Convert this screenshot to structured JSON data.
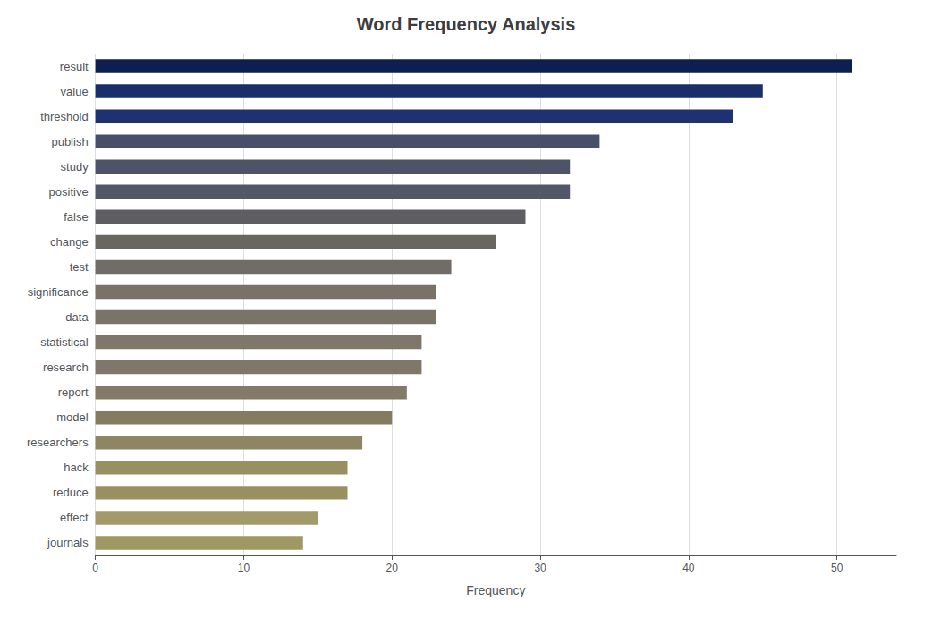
{
  "chart_data": {
    "type": "bar",
    "orientation": "horizontal",
    "title": "Word Frequency Analysis",
    "xlabel": "Frequency",
    "categories": [
      "result",
      "value",
      "threshold",
      "publish",
      "study",
      "positive",
      "false",
      "change",
      "test",
      "significance",
      "data",
      "statistical",
      "research",
      "report",
      "model",
      "researchers",
      "hack",
      "reduce",
      "effect",
      "journals"
    ],
    "values": [
      51,
      45,
      43,
      34,
      32,
      32,
      29,
      27,
      24,
      23,
      23,
      22,
      22,
      21,
      20,
      18,
      17,
      17,
      15,
      14
    ],
    "colors": [
      "#0d1f4e",
      "#1a2e6a",
      "#1e3272",
      "#484f68",
      "#4f5368",
      "#545768",
      "#5d5d62",
      "#676760",
      "#706c68",
      "#787268",
      "#797368",
      "#7e776a",
      "#7f786a",
      "#837a68",
      "#847b62",
      "#8e8562",
      "#989060",
      "#989060",
      "#a29a6a",
      "#a09862"
    ],
    "xlim": [
      0,
      54
    ],
    "xticks": [
      0,
      10,
      20,
      30,
      40,
      50
    ],
    "grid": true
  }
}
